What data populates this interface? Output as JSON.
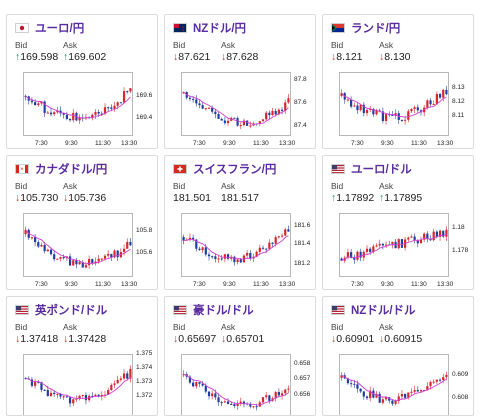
{
  "cards": [
    {
      "pair": "ユーロ/円",
      "flag": "jp",
      "trend": "up",
      "bid_label": "Bid",
      "ask_label": "Ask",
      "bid": "169.598",
      "ask": "169.602",
      "bid_dir": "up",
      "ask_dir": "up",
      "yticks": [
        "169.6",
        "169.4"
      ],
      "xticks": [
        "7:30",
        "9:30",
        "11:30",
        "13:30"
      ]
    },
    {
      "pair": "NZドル/円",
      "flag": "nz",
      "trend": "down",
      "bid_label": "Bid",
      "ask_label": "Ask",
      "bid": "87.621",
      "ask": "87.628",
      "bid_dir": "down",
      "ask_dir": "down",
      "yticks": [
        "87.8",
        "87.6",
        "87.4"
      ],
      "xticks": [
        "7:30",
        "9:30",
        "11:30",
        "13:30"
      ]
    },
    {
      "pair": "ランド/円",
      "flag": "za",
      "trend": "down",
      "bid_label": "Bid",
      "ask_label": "Ask",
      "bid": "8.121",
      "ask": "8.130",
      "bid_dir": "down",
      "ask_dir": "down",
      "yticks": [
        "8.13",
        "8.12",
        "8.11"
      ],
      "xticks": [
        "7:30",
        "9:30",
        "11:30",
        "13:30"
      ]
    },
    {
      "pair": "カナダドル/円",
      "flag": "ca",
      "trend": "down",
      "bid_label": "Bid",
      "ask_label": "Ask",
      "bid": "105.730",
      "ask": "105.736",
      "bid_dir": "down",
      "ask_dir": "down",
      "yticks": [
        "105.8",
        "105.6"
      ],
      "xticks": [
        "7:30",
        "9:30",
        "11:30",
        "13:30"
      ]
    },
    {
      "pair": "スイスフラン/円",
      "flag": "ch",
      "trend": "down",
      "bid_label": "Bid",
      "ask_label": "Ask",
      "bid": "181.501",
      "ask": "181.517",
      "bid_dir": "none",
      "ask_dir": "none",
      "yticks": [
        "181.6",
        "181.4",
        "181.2"
      ],
      "xticks": [
        "7:30",
        "9:30",
        "11:30",
        "13:30"
      ]
    },
    {
      "pair": "ユーロ/ドル",
      "flag": "us",
      "trend": "up",
      "bid_label": "Bid",
      "ask_label": "Ask",
      "bid": "1.17892",
      "ask": "1.17895",
      "bid_dir": "up",
      "ask_dir": "up",
      "yticks": [
        "1.18",
        "1.178"
      ],
      "xticks": [
        "7:30",
        "9:30",
        "11:30",
        "13:30"
      ]
    },
    {
      "pair": "英ポンド/ドル",
      "flag": "us",
      "trend": "down",
      "bid_label": "Bid",
      "ask_label": "Ask",
      "bid": "1.37418",
      "ask": "1.37428",
      "bid_dir": "down",
      "ask_dir": "down",
      "yticks": [
        "1.375",
        "1.374",
        "1.373",
        "1.372"
      ],
      "xticks": []
    },
    {
      "pair": "豪ドル/ドル",
      "flag": "us",
      "trend": "down",
      "bid_label": "Bid",
      "ask_label": "Ask",
      "bid": "0.65697",
      "ask": "0.65701",
      "bid_dir": "down",
      "ask_dir": "down",
      "yticks": [
        "0.658",
        "0.657",
        "0.656"
      ],
      "xticks": []
    },
    {
      "pair": "NZドル/ドル",
      "flag": "us",
      "trend": "down",
      "bid_label": "Bid",
      "ask_label": "Ask",
      "bid": "0.60901",
      "ask": "0.60915",
      "bid_dir": "down",
      "ask_dir": "down",
      "yticks": [
        "0.609",
        "0.608"
      ],
      "xticks": []
    }
  ],
  "colors": {
    "up_bg": "#eaf4fb",
    "down_bg": "#fdf1f1",
    "pair_text": "#5a2ca0",
    "up_arrow": "#2e8b57",
    "down_arrow": "#d22d2d",
    "bull": "#d8262c",
    "bear": "#1f3fa0",
    "ma": "#d13fd1"
  }
}
